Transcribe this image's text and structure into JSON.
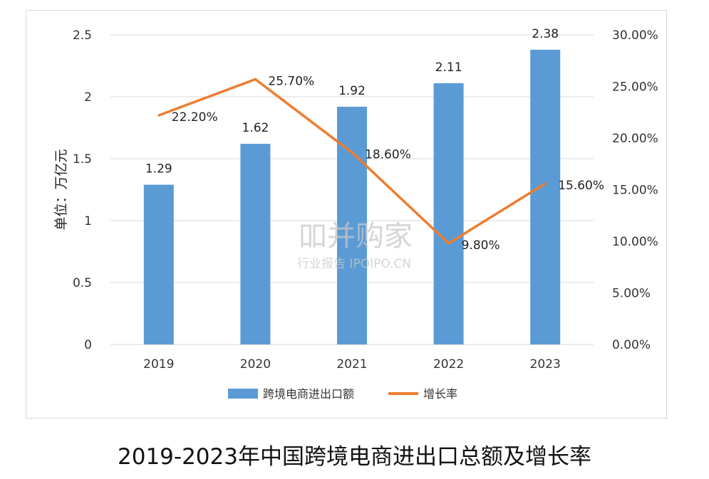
{
  "chart_data": {
    "type": "bar+line",
    "categories": [
      "2019",
      "2020",
      "2021",
      "2022",
      "2023"
    ],
    "series": [
      {
        "name": "跨境电商进出口额",
        "type": "bar",
        "axis": "left",
        "color": "#5b9bd5",
        "values": [
          1.29,
          1.62,
          1.92,
          2.11,
          2.38
        ],
        "labels": [
          "1.29",
          "1.62",
          "1.92",
          "2.11",
          "2.38"
        ]
      },
      {
        "name": "增长率",
        "type": "line",
        "axis": "right",
        "color": "#ed7d31",
        "values": [
          22.2,
          25.7,
          18.6,
          9.8,
          15.6
        ],
        "labels": [
          "22.20%",
          "25.70%",
          "18.60%",
          "9.80%",
          "15.60%"
        ]
      }
    ],
    "ylabel": "单位：万亿元",
    "y_left": {
      "min": 0,
      "max": 2.5,
      "ticks": [
        "0",
        "0.5",
        "1",
        "1.5",
        "2",
        "2.5"
      ],
      "values": [
        0,
        0.5,
        1,
        1.5,
        2,
        2.5
      ]
    },
    "y_right": {
      "min": 0,
      "max": 30,
      "ticks": [
        "0.00%",
        "5.00%",
        "10.00%",
        "15.00%",
        "20.00%",
        "25.00%",
        "30.00%"
      ],
      "values": [
        0,
        5,
        10,
        15,
        20,
        25,
        30
      ]
    },
    "grid": true,
    "legend_position": "bottom"
  },
  "watermark": {
    "main": "吅并购家",
    "sub": "行业报告 IPOIPO.CN"
  },
  "caption": "2019-2023年中国跨境电商进出口总额及增长率"
}
